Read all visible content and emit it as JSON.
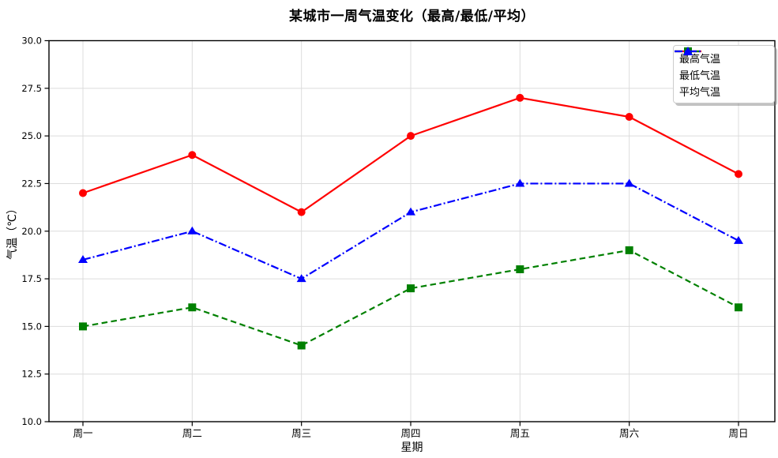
{
  "chart_data": {
    "type": "line",
    "title": "某城市一周气温变化（最高/最低/平均）",
    "xlabel": "星期",
    "ylabel": "气温（℃）",
    "categories": [
      "周一",
      "周二",
      "周三",
      "周四",
      "周五",
      "周六",
      "周日"
    ],
    "series": [
      {
        "name": "最高气温",
        "values": [
          22,
          24,
          21,
          25,
          27,
          26,
          23
        ],
        "color": "#ff0000",
        "linestyle": "solid",
        "marker": "circle"
      },
      {
        "name": "最低气温",
        "values": [
          15,
          16,
          14,
          17,
          18,
          19,
          16
        ],
        "color": "#008000",
        "linestyle": "dashed",
        "marker": "square"
      },
      {
        "name": "平均气温",
        "values": [
          18.5,
          20.0,
          17.5,
          21.0,
          22.5,
          22.5,
          19.5
        ],
        "color": "#0000ff",
        "linestyle": "dashdot",
        "marker": "triangle"
      }
    ],
    "ylim": [
      10.0,
      30.0
    ],
    "yticks": [
      10.0,
      12.5,
      15.0,
      17.5,
      20.0,
      22.5,
      25.0,
      27.5,
      30.0
    ],
    "ytick_labels": [
      "10.0",
      "12.5",
      "15.0",
      "17.5",
      "20.0",
      "22.5",
      "25.0",
      "27.5",
      "30.0"
    ],
    "grid": true,
    "grid_color": "#dcdcdc",
    "spine_color": "#000000",
    "legend_position": "upper right"
  }
}
